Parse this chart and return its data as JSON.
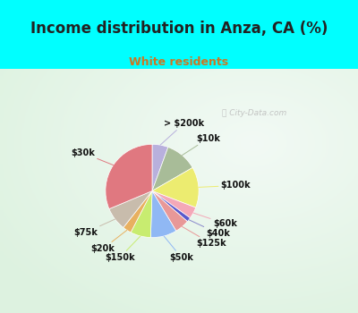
{
  "title": "Income distribution in Anza, CA (%)",
  "subtitle": "White residents",
  "title_color": "#222222",
  "subtitle_color": "#cc7722",
  "bg_top_color": "#00ffff",
  "chart_bg_color_left": "#e8f8f0",
  "chart_bg_color_right": "#d0eee8",
  "labels": [
    "> $200k",
    "$10k",
    "$100k",
    "$60k",
    "$40k",
    "$125k",
    "$50k",
    "$150k",
    "$20k",
    "$75k",
    "$30k"
  ],
  "sizes": [
    5.5,
    11,
    14,
    4,
    1.5,
    5,
    9,
    7,
    3,
    8,
    31
  ],
  "colors": [
    "#b8b0dc",
    "#a8bc98",
    "#ecec70",
    "#f4a8b8",
    "#5858cc",
    "#e89898",
    "#90b8f4",
    "#c8ec70",
    "#e8b060",
    "#c8bcac",
    "#e07880"
  ],
  "line_colors": [
    "#b8b0dc",
    "#a8bc98",
    "#ecec70",
    "#f4a8b8",
    "#8888cc",
    "#e89898",
    "#90b8f4",
    "#c8ec70",
    "#e8b060",
    "#c8bcac",
    "#e07880"
  ],
  "watermark_text": "City-Data.com"
}
